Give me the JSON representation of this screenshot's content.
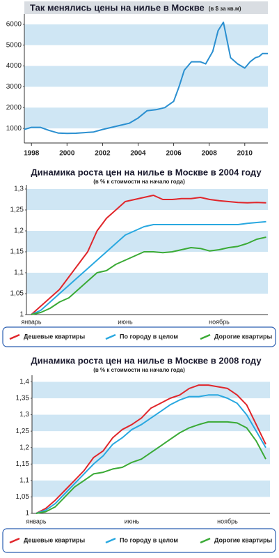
{
  "chart_data": [
    {
      "type": "line",
      "title": "Так менялись цены на нилье в Москве",
      "title_note": "(в $ за кв.м)",
      "x": [
        1997.6,
        1998,
        1998.5,
        1999,
        1999.5,
        2000,
        2000.5,
        2001,
        2001.5,
        2002,
        2002.5,
        2003,
        2003.5,
        2004,
        2004.5,
        2005,
        2005.5,
        2006,
        2006.3,
        2006.6,
        2007,
        2007.5,
        2007.8,
        2008.2,
        2008.5,
        2008.8,
        2009.2,
        2009.6,
        2010,
        2010.3,
        2010.6,
        2010.8,
        2011,
        2011.3
      ],
      "series": [
        {
          "color": "#2a8fd0",
          "values": [
            950,
            1050,
            1050,
            900,
            780,
            760,
            770,
            800,
            830,
            950,
            1050,
            1150,
            1250,
            1500,
            1850,
            1900,
            2000,
            2300,
            3000,
            3800,
            4200,
            4200,
            4100,
            4700,
            5700,
            6100,
            4400,
            4100,
            3900,
            4200,
            4400,
            4450,
            4600,
            4600
          ]
        }
      ],
      "xlim": [
        1997.6,
        2011.3
      ],
      "xticks": [
        1998,
        2000,
        2002,
        2004,
        2006,
        2008,
        2010
      ],
      "ylim": [
        300,
        6500
      ],
      "yticks": [
        1000,
        2000,
        3000,
        4000,
        5000,
        6000
      ],
      "bands": true
    },
    {
      "type": "line",
      "title": "Динамика роста цен на нилье в Москве в 2004 году",
      "subtitle": "(в % к стоимости на начало года)",
      "categories": [
        "январь",
        null,
        null,
        null,
        null,
        null,
        null,
        null,
        null,
        null,
        "июнь",
        null,
        null,
        null,
        null,
        null,
        null,
        null,
        null,
        null,
        "ноябрь",
        null,
        null,
        null,
        null,
        null
      ],
      "series": [
        {
          "name": "Дешевые квартиры",
          "color": "#e0262b",
          "values": [
            1,
            1.02,
            1.04,
            1.06,
            1.09,
            1.12,
            1.15,
            1.2,
            1.23,
            1.25,
            1.27,
            1.275,
            1.28,
            1.285,
            1.275,
            1.275,
            1.277,
            1.277,
            1.28,
            1.275,
            1.272,
            1.27,
            1.268,
            1.267,
            1.268,
            1.267
          ]
        },
        {
          "name": "По городу в целом",
          "color": "#29a8e0",
          "values": [
            1,
            1.01,
            1.03,
            1.05,
            1.07,
            1.09,
            1.11,
            1.13,
            1.15,
            1.17,
            1.19,
            1.2,
            1.21,
            1.215,
            1.215,
            1.215,
            1.215,
            1.215,
            1.215,
            1.215,
            1.215,
            1.215,
            1.215,
            1.218,
            1.22,
            1.222
          ]
        },
        {
          "name": "Дорогие квартиры",
          "color": "#3aaa35",
          "values": [
            1,
            1.005,
            1.015,
            1.03,
            1.04,
            1.06,
            1.08,
            1.1,
            1.105,
            1.12,
            1.13,
            1.14,
            1.15,
            1.15,
            1.148,
            1.15,
            1.155,
            1.16,
            1.158,
            1.152,
            1.155,
            1.16,
            1.163,
            1.17,
            1.18,
            1.185
          ]
        }
      ],
      "ylim": [
        1,
        1.31
      ],
      "yticks": [
        {
          "value": 1,
          "label": "1"
        },
        {
          "value": 1.05,
          "label": "1,05"
        },
        {
          "value": 1.1,
          "label": "1,1"
        },
        {
          "value": 1.15,
          "label": "1,15"
        },
        {
          "value": 1.2,
          "label": "1,2"
        },
        {
          "value": 1.25,
          "label": "1,25"
        },
        {
          "value": 1.3,
          "label": "1,3"
        }
      ],
      "bands": true
    },
    {
      "type": "line",
      "title": "Динамика роста цен на нилье в Москве в 2008 году",
      "subtitle": "(в % к стоимости на начало года)",
      "categories": [
        "январь",
        null,
        null,
        null,
        null,
        null,
        null,
        null,
        null,
        null,
        "июнь",
        null,
        null,
        null,
        null,
        null,
        null,
        null,
        null,
        null,
        "ноябрь",
        null,
        null,
        null,
        null
      ],
      "series": [
        {
          "name": "Дешевые квартиры",
          "color": "#e0262b",
          "values": [
            1,
            1.015,
            1.04,
            1.07,
            1.1,
            1.13,
            1.17,
            1.19,
            1.23,
            1.255,
            1.27,
            1.29,
            1.32,
            1.335,
            1.35,
            1.36,
            1.38,
            1.39,
            1.39,
            1.385,
            1.38,
            1.36,
            1.33,
            1.27,
            1.21
          ]
        },
        {
          "name": "По городу в целом",
          "color": "#29a8e0",
          "values": [
            1,
            1.01,
            1.03,
            1.06,
            1.09,
            1.12,
            1.15,
            1.175,
            1.21,
            1.23,
            1.255,
            1.27,
            1.29,
            1.31,
            1.33,
            1.345,
            1.355,
            1.355,
            1.36,
            1.36,
            1.35,
            1.335,
            1.3,
            1.25,
            1.2
          ]
        },
        {
          "name": "Дорогие квартиры",
          "color": "#3aaa35",
          "values": [
            1,
            1.005,
            1.02,
            1.05,
            1.08,
            1.1,
            1.12,
            1.125,
            1.135,
            1.14,
            1.155,
            1.165,
            1.185,
            1.205,
            1.225,
            1.245,
            1.26,
            1.27,
            1.278,
            1.278,
            1.278,
            1.275,
            1.26,
            1.22,
            1.165
          ]
        }
      ],
      "ylim": [
        1,
        1.42
      ],
      "yticks": [
        {
          "value": 1,
          "label": "1"
        },
        {
          "value": 1.05,
          "label": "1,05"
        },
        {
          "value": 1.1,
          "label": "1,1"
        },
        {
          "value": 1.15,
          "label": "1,15"
        },
        {
          "value": 1.2,
          "label": "1,2"
        },
        {
          "value": 1.25,
          "label": "1,25"
        },
        {
          "value": 1.3,
          "label": "1,3"
        },
        {
          "value": 1.35,
          "label": "1,35"
        },
        {
          "value": 1.4,
          "label": "1,4"
        }
      ],
      "bands": true
    }
  ]
}
